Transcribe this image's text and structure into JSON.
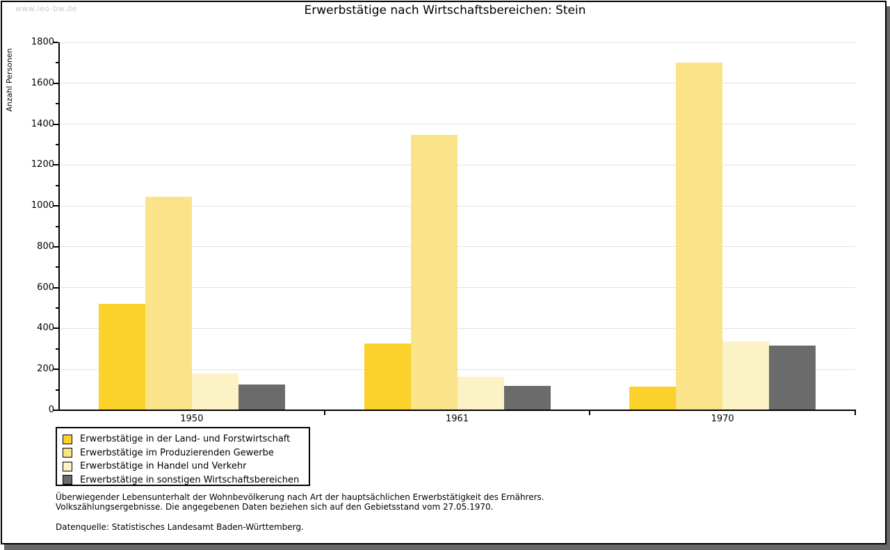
{
  "watermark": "www.leo-bw.de",
  "title": "Erwerbstätige nach Wirtschaftsbereichen: Stein",
  "footnotes": {
    "line1": "Überwiegender Lebensunterhalt der Wohnbevölkerung nach Art der hauptsächlichen Erwerbstätigkeit des Ernährers.",
    "line2": "Volkszählungsergebnisse. Die angegebenen Daten beziehen sich auf den Gebietsstand vom 27.05.1970.",
    "source": "Datenquelle: Statistisches Landesamt Baden-Württemberg."
  },
  "colors": {
    "axis": "#000000",
    "grid": "#e3e3e3",
    "watermark": "#c9c9c9",
    "frame_shadow": "#686868",
    "background": "#ffffff"
  },
  "chart_data": {
    "type": "bar",
    "title": "Erwerbstätige nach Wirtschaftsbereichen: Stein",
    "xlabel": "",
    "ylabel": "Anzahl Personen",
    "categories": [
      "1950",
      "1961",
      "1970"
    ],
    "series": [
      {
        "name": "Erwerbstätige in der Land- und Forstwirtschaft",
        "color": "#FBD12B",
        "values": [
          520,
          325,
          117
        ]
      },
      {
        "name": "Erwerbstätige im Produzierenden Gewerbe",
        "color": "#FAE389",
        "values": [
          1043,
          1346,
          1700
        ]
      },
      {
        "name": "Erwerbstätige in Handel und Verkehr",
        "color": "#FBF2C6",
        "values": [
          181,
          162,
          338
        ]
      },
      {
        "name": "Erwerbstätige in sonstigen Wirtschaftsbereichen",
        "color": "#6B6B6B",
        "values": [
          127,
          119,
          315
        ]
      }
    ],
    "ylim": [
      0,
      1800
    ],
    "ytick_step": 200,
    "yminor_step": 100,
    "grid": true,
    "legend_position": "bottom-left"
  }
}
